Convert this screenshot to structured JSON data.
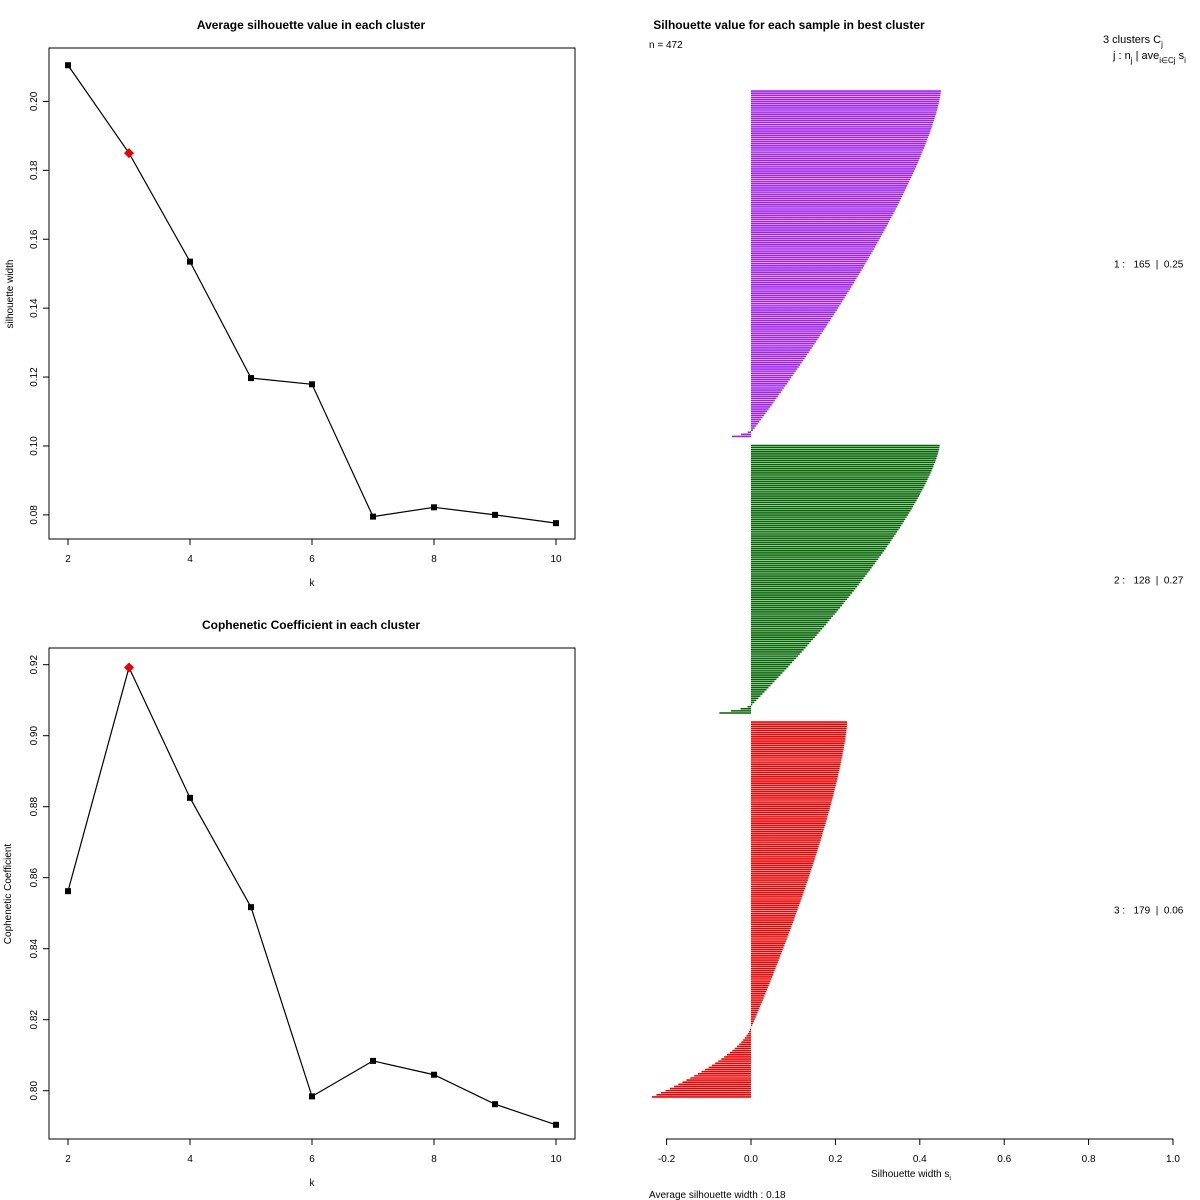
{
  "chart_data": [
    {
      "type": "line",
      "title": "Average silhouette value in each cluster",
      "xlabel": "k",
      "ylabel": "silhouette width",
      "x": [
        2,
        3,
        4,
        5,
        6,
        7,
        8,
        9,
        10
      ],
      "values": [
        0.2105,
        0.185,
        0.1535,
        0.1197,
        0.1179,
        0.0795,
        0.0822,
        0.08,
        0.0776
      ],
      "highlight_index": 1,
      "highlight_color": "#ee0000",
      "xlim": [
        2,
        10
      ],
      "ylim": [
        0.073,
        0.2155
      ],
      "xticks": [
        "2",
        "4",
        "6",
        "8",
        "10"
      ],
      "yticks": [
        "0.08",
        "0.10",
        "0.12",
        "0.14",
        "0.16",
        "0.18",
        "0.20"
      ]
    },
    {
      "type": "line",
      "title": "Cophenetic Coefficient in each cluster",
      "xlabel": "k",
      "ylabel": "Cophenetic Coefficient",
      "x": [
        2,
        3,
        4,
        5,
        6,
        7,
        8,
        9,
        10
      ],
      "values": [
        0.8562,
        0.9192,
        0.8825,
        0.8517,
        0.7984,
        0.8084,
        0.8045,
        0.7962,
        0.7904
      ],
      "highlight_index": 1,
      "highlight_color": "#ee0000",
      "xlim": [
        2,
        10
      ],
      "ylim": [
        0.7864,
        0.9247
      ],
      "xticks": [
        "2",
        "4",
        "6",
        "8",
        "10"
      ],
      "yticks": [
        "0.80",
        "0.82",
        "0.84",
        "0.86",
        "0.88",
        "0.90",
        "0.92"
      ]
    },
    {
      "type": "bar",
      "orientation": "horizontal",
      "title": "Silhouette value for each sample in best cluster",
      "n_label": "n = 472",
      "xlabel": "Silhouette width s",
      "xlabel_sub": "i",
      "xlim": [
        -0.2,
        1.0
      ],
      "xticks": [
        "-0.2",
        "0.0",
        "0.2",
        "0.4",
        "0.6",
        "0.8",
        "1.0"
      ],
      "footer": "Average silhouette width :  0.18",
      "header_line1": "3  clusters  C",
      "header_line1_sub": "j",
      "header_line2": "j :  n",
      "header_line2_sub": "j",
      "header_line2_rest": " | ave",
      "header_line2_sub2": "i∈Cj",
      "header_line2_end": " s",
      "header_line2_sub3": "i",
      "series": [
        {
          "name": "1",
          "n": 165,
          "avg": 0.25,
          "label": "1 :   165  |  0.25",
          "color": "#a020f0",
          "max": 0.45,
          "min_pos": 0.005,
          "neg_count": 3,
          "neg_min": -0.045
        },
        {
          "name": "2",
          "n": 128,
          "avg": 0.27,
          "label": "2 :   128  |  0.27",
          "color": "#006400",
          "max": 0.447,
          "min_pos": 0.003,
          "neg_count": 4,
          "neg_min": -0.075
        },
        {
          "name": "3",
          "n": 179,
          "avg": 0.06,
          "label": "3 :   179  |  0.06",
          "color": "#ee0000",
          "max": 0.228,
          "min_pos": 0.003,
          "neg_count": 34,
          "neg_min": -0.235
        }
      ]
    }
  ]
}
